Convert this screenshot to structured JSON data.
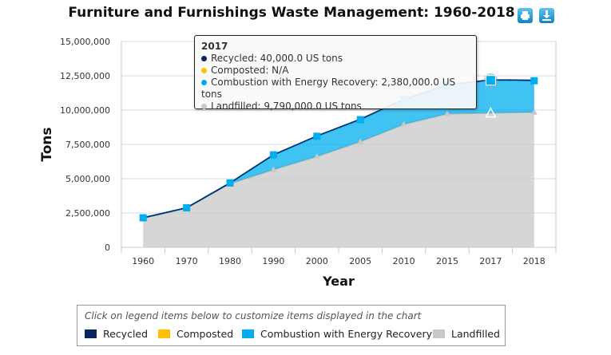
{
  "chart_data": {
    "type": "area",
    "stacked": true,
    "title": "Furniture and Furnishings Waste Management: 1960-2018",
    "xlabel": "Year",
    "ylabel": "Tons",
    "categories": [
      "1960",
      "1970",
      "1980",
      "1990",
      "2000",
      "2005",
      "2010",
      "2015",
      "2017",
      "2018"
    ],
    "ylim": [
      0,
      15000000
    ],
    "yticks": [
      "0",
      "2,500,000",
      "5,000,000",
      "7,500,000",
      "10,000,000",
      "12,500,000",
      "15,000,000"
    ],
    "grid": true,
    "series": [
      {
        "name": "Recycled",
        "color": "#0a2463",
        "values": [
          0,
          0,
          0,
          0,
          30000,
          40000,
          10000,
          30000,
          40000,
          40000
        ]
      },
      {
        "name": "Composted",
        "color": "#ffc000",
        "values": [
          null,
          null,
          null,
          null,
          null,
          null,
          null,
          null,
          null,
          null
        ]
      },
      {
        "name": "Combustion with Energy Recovery",
        "color": "#00aeef",
        "values": [
          20000,
          30000,
          50000,
          1080000,
          1470000,
          1600000,
          1820000,
          2090000,
          2380000,
          2300000
        ]
      },
      {
        "name": "Landfilled",
        "color": "#c8c8c8",
        "values": [
          2130000,
          2850000,
          4640000,
          5660000,
          6620000,
          7700000,
          8960000,
          9730000,
          9790000,
          9840000
        ]
      }
    ]
  },
  "tooltip": {
    "year": "2017",
    "lines": [
      "Recycled: 40,000.0 US tons",
      "Composted: N/A",
      "Combustion with Energy Recovery: 2,380,000.0 US tons",
      "Landfilled: 9,790,000.0 US tons"
    ]
  },
  "legend": {
    "hint": "Click on legend items below to customize items displayed in the chart"
  },
  "buttons": {
    "print": "print-icon",
    "download": "download-icon"
  }
}
